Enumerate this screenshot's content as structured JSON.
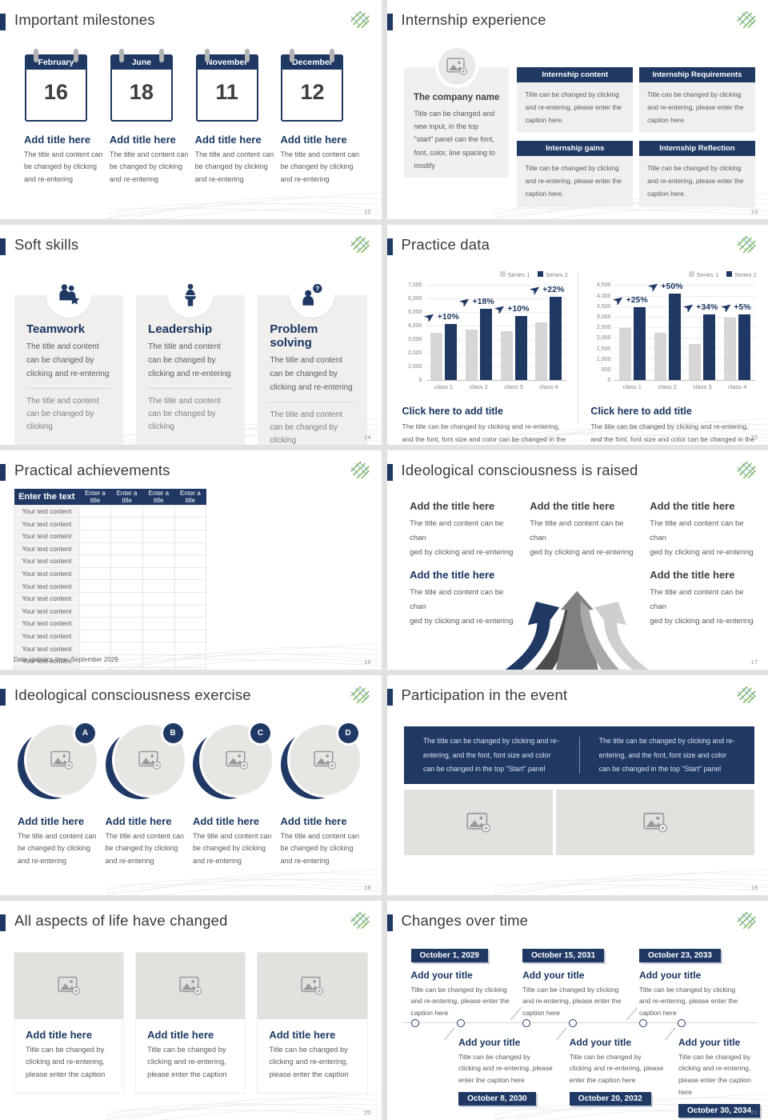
{
  "slides": {
    "milestones": {
      "title": "Important milestones",
      "page": "12",
      "items": [
        {
          "month": "February",
          "day": "16",
          "heading": "Add title here",
          "body": "The title and content can be changed by clicking and re-entering"
        },
        {
          "month": "June",
          "day": "18",
          "heading": "Add title here",
          "body": "The title and content can be changed by clicking and re-entering"
        },
        {
          "month": "November",
          "day": "11",
          "heading": "Add title here",
          "body": "The title and content can be changed by clicking and re-entering"
        },
        {
          "month": "December",
          "day": "12",
          "heading": "Add title here",
          "body": "The title and content can be changed by clicking and re-entering"
        }
      ]
    },
    "internship": {
      "title": "Internship experience",
      "page": "13",
      "company": {
        "heading": "The company name",
        "body": "Title can be changed and new input, in the top \"start\" panel can the font, font, color, line spacing to modify"
      },
      "boxes": [
        {
          "header": "Internship content",
          "body": "Title can be changed by clicking and re-entering, please enter the caption here."
        },
        {
          "header": "Internship Requirements",
          "body": "Title can be changed by clicking and re-entering, please enter the caption here."
        },
        {
          "header": "Internship gains",
          "body": "Title can be changed by clicking and re-entering, please enter the caption here."
        },
        {
          "header": "Internship Reflection",
          "body": "Title can be changed by clicking and re-entering, please enter the caption here."
        }
      ]
    },
    "softskills": {
      "title": "Soft skills",
      "page": "14",
      "cards": [
        {
          "icon": "teamwork-icon",
          "heading": "Teamwork",
          "body": "The title and content can be changed by clicking and re-entering",
          "footer": "The title and content can be changed by clicking"
        },
        {
          "icon": "leadership-icon",
          "heading": "Leadership",
          "body": "The title and content can be changed by clicking and re-entering",
          "footer": "The title and content can be changed by clicking"
        },
        {
          "icon": "problem-solving-icon",
          "heading": "Problem solving",
          "body": "The title and content can be changed by clicking and re-entering",
          "footer": "The title and content can be changed by clicking"
        }
      ]
    },
    "practice": {
      "title": "Practice data",
      "page": "15",
      "caption_heading": "Click here to add title",
      "caption_body": "The title can be changed by clicking and re-entering, and the font, font size and color can be changed in the top \"Start\" panel"
    },
    "achievements": {
      "title": "Practical achievements",
      "page": "16",
      "table": {
        "main_header": "Enter the text",
        "column_headers": [
          "Enter a title",
          "Enter a title",
          "Enter a title",
          "Enter a title"
        ],
        "row_text": "Your text content",
        "row_count": 14
      },
      "footnote": "Data statistics time: September 2029"
    },
    "ideology_raised": {
      "title": "Ideological consciousness is raised",
      "page": "17",
      "blocks": [
        {
          "heading": "Add the title here",
          "body": "The title and content can be chan\nged by clicking and re-entering"
        },
        {
          "heading": "Add the title here",
          "body": "The title and content can be chan\nged by clicking and re-entering"
        },
        {
          "heading": "Add the title here",
          "body": "The title and content can be chan\nged by clicking and re-entering"
        },
        {
          "heading": "Add the title here",
          "body": "The title and content can be chan\nged by clicking and re-entering"
        },
        {
          "heading": "Add the title here",
          "body": "The title and content can be chan\nged by clicking and re-entering"
        }
      ]
    },
    "ideology_exercise": {
      "title": "Ideological consciousness exercise",
      "page": "18",
      "items": [
        {
          "badge": "A",
          "heading": "Add title here",
          "body": "The title and content can be changed by clicking and re-entering"
        },
        {
          "badge": "B",
          "heading": "Add title here",
          "body": "The title and content can be changed by clicking and re-entering"
        },
        {
          "badge": "C",
          "heading": "Add title here",
          "body": "The title and content can be changed by clicking and re-entering"
        },
        {
          "badge": "D",
          "heading": "Add title here",
          "body": "The title and content can be changed by clicking and re-entering"
        }
      ]
    },
    "participation": {
      "title": "Participation in the event",
      "page": "19",
      "banner_left": "The title can be changed by clicking and re-entering, and the font, font size and color can be changed in the top \"Start\" panel",
      "banner_right": "The title can be changed by clicking and re-entering, and the font, font size and color can be changed in the top \"Start\" panel"
    },
    "life_changed": {
      "title": "All aspects of life have changed",
      "page": "20",
      "cards": [
        {
          "heading": "Add title here",
          "body": "Title can be changed by clicking and re-entering, please enter the caption"
        },
        {
          "heading": "Add title here",
          "body": "Title can be changed by clicking and re-entering, please enter the caption"
        },
        {
          "heading": "Add title here",
          "body": "Title can be changed by clicking and re-entering, please enter the caption"
        }
      ]
    },
    "timeline": {
      "title": "Changes over time",
      "page": "21",
      "top": [
        {
          "date": "October 1, 2029",
          "heading": "Add your title",
          "body": "Title can be changed by clicking and re-entering, please enter the caption here"
        },
        {
          "date": "October 15, 2031",
          "heading": "Add your title",
          "body": "Title can be changed by clicking and re-entering, please enter the caption here"
        },
        {
          "date": "October 23, 2033",
          "heading": "Add your title",
          "body": "Title can be changed by clicking and re-entering, please enter the caption here"
        }
      ],
      "bottom": [
        {
          "date": "October 8, 2030",
          "heading": "Add your title",
          "body": "Title can be changed by clicking and re-entering, please enter the caption here"
        },
        {
          "date": "October 20, 2032",
          "heading": "Add your title",
          "body": "Title can be changed by clicking and re-entering, please enter the caption here"
        },
        {
          "date": "October 30, 2034",
          "heading": "Add your title",
          "body": "Title can be changed by clicking and re-entering, please enter the caption here"
        }
      ]
    }
  },
  "chart_data": [
    {
      "type": "bar",
      "title": "",
      "categories": [
        "class 1",
        "class 2",
        "class 3",
        "class 4"
      ],
      "series": [
        {
          "name": "Series 1",
          "color": "#d6d6d6",
          "values": [
            3500,
            3750,
            3650,
            4300
          ]
        },
        {
          "name": "Series 2",
          "color": "#1f3864",
          "values": [
            4200,
            5300,
            4750,
            6200
          ]
        }
      ],
      "annotations": [
        "+10%",
        "+18%",
        "+10%",
        "+22%"
      ],
      "ylim": [
        0,
        7000
      ],
      "yticks": [
        "0",
        "1,000",
        "2,000",
        "3,000",
        "4,000",
        "5,000",
        "6,000",
        "7,000"
      ],
      "grid": true,
      "legend_position": "top-right"
    },
    {
      "type": "bar",
      "title": "",
      "categories": [
        "class 1",
        "class 2",
        "class 3",
        "class 4"
      ],
      "series": [
        {
          "name": "Series 1",
          "color": "#d6d6d6",
          "values": [
            2500,
            2250,
            1750,
            3000
          ]
        },
        {
          "name": "Series 2",
          "color": "#1f3864",
          "values": [
            3500,
            4150,
            3150,
            3150
          ]
        }
      ],
      "annotations": [
        "+25%",
        "+50%",
        "+34%",
        "+5%"
      ],
      "ylim": [
        0,
        4500
      ],
      "yticks": [
        "0",
        "500",
        "1,000",
        "1,500",
        "2,000",
        "2,500",
        "3,000",
        "3,500",
        "4,000",
        "4,500"
      ],
      "grid": true,
      "legend_position": "top-right"
    }
  ]
}
